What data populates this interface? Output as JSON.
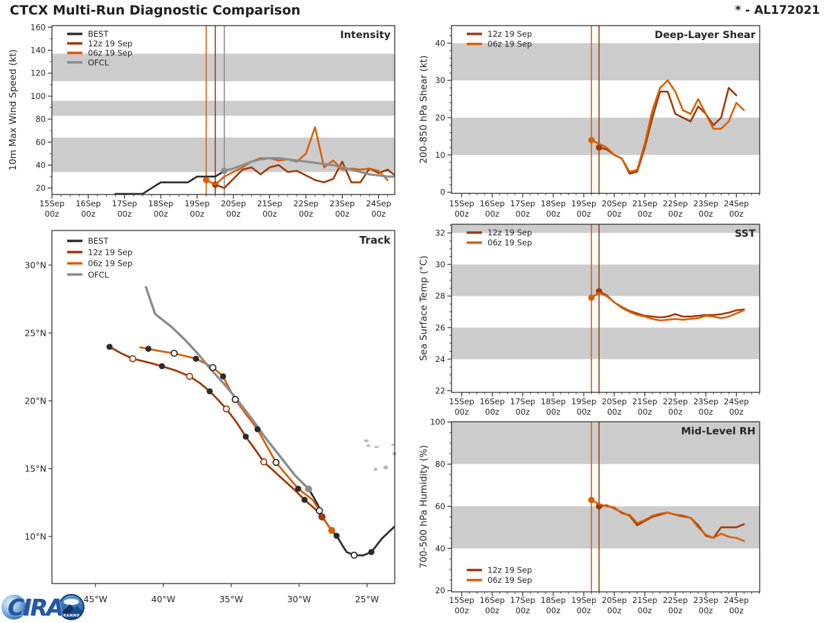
{
  "header": {
    "title": "CTCX Multi-Run Diagnostic Comparison",
    "storm_id": "* - AL172021"
  },
  "colors": {
    "best": "#2b2b2b",
    "run12": "#a03a08",
    "run06": "#d95f02",
    "ofcl": "#8c8c8c",
    "band": "#cccccc",
    "land": "#b9b9b9",
    "text": "#262626",
    "spine": "#333333"
  },
  "legend_labels": {
    "best": "BEST",
    "run12": "12z 19 Sep",
    "run06": "06z 19 Sep",
    "ofcl": "OFCL"
  },
  "logo": {
    "cira_text": "CIRA",
    "badge_text": "RAMMB"
  },
  "chart_data": {
    "type": "line",
    "time_axis": {
      "day_labels": [
        [
          "15Sep",
          "00z"
        ],
        [
          "16Sep",
          "00z"
        ],
        [
          "17Sep",
          "00z"
        ],
        [
          "18Sep",
          "00z"
        ],
        [
          "19Sep",
          "00z"
        ],
        [
          "20Sep",
          "00z"
        ],
        [
          "21Sep",
          "00z"
        ],
        [
          "22Sep",
          "00z"
        ],
        [
          "23Sep",
          "00z"
        ],
        [
          "24Sep",
          "00z"
        ]
      ]
    },
    "panels": {
      "intensity": {
        "title": "Intensity",
        "ylabel": "10m Max Wind Speed (kt)",
        "ylim": [
          14.4,
          161.4
        ],
        "yticks": [
          20,
          40,
          60,
          80,
          100,
          120,
          140,
          160
        ],
        "yminor_step": 10,
        "bands": [
          [
            34,
            64
          ],
          [
            83,
            96
          ],
          [
            113,
            137
          ]
        ],
        "vlines": [
          {
            "hour": 102,
            "color": "run06"
          },
          {
            "hour": 108,
            "color": "run12"
          },
          {
            "hour": 114,
            "color": "ofcl"
          }
        ],
        "legend": {
          "keys": [
            "best",
            "run12",
            "run06",
            "ofcl"
          ],
          "pos": "top-left"
        },
        "series": [
          {
            "key": "best",
            "start_hour": 42,
            "step_hours": 6,
            "start_marker": false,
            "values": [
              15,
              15,
              15,
              15,
              20,
              25,
              25,
              25,
              25,
              30,
              30,
              30,
              35
            ]
          },
          {
            "key": "run12",
            "start_hour": 108,
            "step_hours": 6,
            "start_marker": true,
            "values": [
              23,
              20,
              28,
              36,
              38,
              32,
              38,
              40,
              34,
              35,
              31,
              27,
              25,
              28,
              43,
              25,
              25,
              37,
              33,
              36,
              30
            ]
          },
          {
            "key": "run06",
            "start_hour": 102,
            "step_hours": 6,
            "start_marker": true,
            "values": [
              27,
              23,
              30,
              34,
              38,
              43,
              46,
              46,
              44,
              45,
              43,
              50,
              73,
              38,
              44,
              36,
              37,
              36,
              37,
              35,
              27
            ]
          },
          {
            "key": "ofcl",
            "start_hour": 114,
            "step_hours": 6,
            "start_marker": true,
            "values": [
              35,
              37,
              40,
              43,
              45,
              46,
              46,
              45,
              44,
              43,
              42,
              41,
              40,
              38,
              36,
              34,
              32,
              31,
              30,
              30
            ]
          }
        ]
      },
      "shear": {
        "title": "Deep-Layer Shear",
        "ylabel": "200-850 hPa Shear (kt)",
        "ylim": [
          -0.3,
          44.7
        ],
        "yticks": [
          0,
          10,
          20,
          30,
          40
        ],
        "yminor_step": 2,
        "bands": [
          [
            10,
            20
          ],
          [
            30,
            40
          ]
        ],
        "vlines": [
          {
            "hour": 102,
            "color": "run06"
          },
          {
            "hour": 108,
            "color": "run12"
          }
        ],
        "legend": {
          "keys": [
            "run12",
            "run06"
          ],
          "pos": "top-left"
        },
        "series": [
          {
            "key": "run12",
            "start_hour": 108,
            "step_hours": 6,
            "start_marker": true,
            "values": [
              12,
              11.5,
              10,
              9,
              5,
              5.5,
              12,
              20,
              27,
              27,
              21,
              20,
              19,
              23,
              21,
              18,
              20,
              28,
              26
            ]
          },
          {
            "key": "run06",
            "start_hour": 102,
            "step_hours": 6,
            "start_marker": true,
            "values": [
              14,
              13,
              12,
              10,
              9,
              5.5,
              6,
              13,
              22,
              28,
              30,
              27,
              22,
              21,
              25,
              21,
              17,
              17,
              19,
              24,
              22
            ]
          }
        ]
      },
      "sst": {
        "title": "SST",
        "ylabel": "Sea Surface Temp (°C)",
        "ylim": [
          21.9,
          32.55
        ],
        "yticks": [
          22,
          24,
          26,
          28,
          30,
          32
        ],
        "yminor_step": 0.5,
        "bands": [
          [
            24,
            26
          ],
          [
            28,
            30
          ],
          [
            32,
            33
          ]
        ],
        "vlines": [
          {
            "hour": 102,
            "color": "run06"
          },
          {
            "hour": 108,
            "color": "run12"
          }
        ],
        "legend": {
          "keys": [
            "run12",
            "run06"
          ],
          "pos": "top-left"
        },
        "series": [
          {
            "key": "run12",
            "start_hour": 108,
            "step_hours": 6,
            "start_marker": true,
            "values": [
              28.3,
              28.05,
              27.6,
              27.3,
              27.05,
              26.9,
              26.75,
              26.7,
              26.65,
              26.7,
              26.85,
              26.7,
              26.7,
              26.75,
              26.8,
              26.8,
              26.85,
              26.95,
              27.1,
              27.15
            ]
          },
          {
            "key": "run06",
            "start_hour": 102,
            "step_hours": 6,
            "start_marker": true,
            "values": [
              27.9,
              28.2,
              28.0,
              27.6,
              27.25,
              27.0,
              26.8,
              26.7,
              26.55,
              26.45,
              26.5,
              26.55,
              26.5,
              26.55,
              26.6,
              26.75,
              26.7,
              26.6,
              26.7,
              26.9,
              27.1
            ]
          }
        ]
      },
      "rh": {
        "title": "Mid-Level RH",
        "ylabel": "700-500 hPa Humidity (%)",
        "ylim": [
          19.4,
          100.1
        ],
        "yticks": [
          20,
          40,
          60,
          80,
          100
        ],
        "yminor_step": 5,
        "bands": [
          [
            40,
            60
          ],
          [
            80,
            100
          ]
        ],
        "vlines": [
          {
            "hour": 102,
            "color": "run06"
          },
          {
            "hour": 108,
            "color": "run12"
          }
        ],
        "legend": {
          "keys": [
            "run12",
            "run06"
          ],
          "pos": "bottom-left"
        },
        "series": [
          {
            "key": "run12",
            "start_hour": 108,
            "step_hours": 6,
            "start_marker": true,
            "values": [
              60,
              60.5,
              59,
              57,
              55.5,
              51,
              53,
              55,
              56,
              57,
              56,
              55.5,
              54.5,
              51,
              46,
              45,
              50,
              50,
              50,
              51.5
            ]
          },
          {
            "key": "run06",
            "start_hour": 102,
            "step_hours": 6,
            "start_marker": true,
            "values": [
              63,
              61,
              60,
              59.5,
              56.5,
              56,
              52,
              53.5,
              55.5,
              56.5,
              57,
              56,
              55,
              54.5,
              50,
              46.5,
              45,
              47,
              45.5,
              45,
              43.5
            ]
          }
        ]
      }
    },
    "track": {
      "title": "Track",
      "lon_lim": [
        -48.2,
        -22.96
      ],
      "lat_lim": [
        6.53,
        32.55
      ],
      "lon_ticks": [
        {
          "lon": -45,
          "label": "45°W"
        },
        {
          "lon": -40,
          "label": "40°W"
        },
        {
          "lon": -35,
          "label": "35°W"
        },
        {
          "lon": -30,
          "label": "30°W"
        },
        {
          "lon": -25,
          "label": "25°W"
        }
      ],
      "lat_ticks": [
        {
          "lat": 30,
          "label": "30°N"
        },
        {
          "lat": 25,
          "label": "25°N"
        },
        {
          "lat": 20,
          "label": "20°N"
        },
        {
          "lat": 15,
          "label": "15°N"
        },
        {
          "lat": 10,
          "label": "10°N"
        }
      ],
      "legend": {
        "keys": [
          "best",
          "run12",
          "run06",
          "ofcl"
        ],
        "pos": "top-left"
      },
      "tracks": [
        {
          "key": "best",
          "points": [
            [
              -22.95,
              10.75,
              ""
            ],
            [
              -23.9,
              9.85,
              ""
            ],
            [
              -24.68,
              8.85,
              "f"
            ],
            [
              -25.3,
              8.6,
              ""
            ],
            [
              -25.95,
              8.62,
              "o"
            ],
            [
              -26.5,
              8.85,
              ""
            ],
            [
              -26.85,
              9.4,
              ""
            ],
            [
              -27.24,
              10.05,
              "f"
            ],
            [
              -27.6,
              10.45,
              ""
            ],
            [
              -27.95,
              10.95,
              ""
            ],
            [
              -28.32,
              11.45,
              "o"
            ],
            [
              -28.45,
              12.0,
              ""
            ],
            [
              -28.9,
              12.85,
              ""
            ],
            [
              -29.3,
              13.5,
              ""
            ]
          ]
        },
        {
          "key": "run12",
          "points": [
            [
              -28.32,
              11.45,
              "s"
            ],
            [
              -28.8,
              12.0,
              ""
            ],
            [
              -29.6,
              12.7,
              "f"
            ],
            [
              -30.3,
              13.4,
              ""
            ],
            [
              -31.4,
              14.4,
              ""
            ],
            [
              -32.6,
              15.5,
              "o"
            ],
            [
              -33.3,
              16.5,
              ""
            ],
            [
              -33.93,
              17.36,
              "f"
            ],
            [
              -34.6,
              18.4,
              ""
            ],
            [
              -35.36,
              19.4,
              "o"
            ],
            [
              -36.0,
              20.1,
              ""
            ],
            [
              -36.58,
              20.7,
              "f"
            ],
            [
              -37.3,
              21.3,
              ""
            ],
            [
              -38.07,
              21.8,
              "o"
            ],
            [
              -39.0,
              22.2,
              ""
            ],
            [
              -40.1,
              22.55,
              "f"
            ],
            [
              -41.2,
              22.85,
              ""
            ],
            [
              -42.25,
              23.1,
              "o"
            ],
            [
              -43.1,
              23.5,
              ""
            ],
            [
              -43.96,
              23.98,
              "f"
            ]
          ]
        },
        {
          "key": "run06",
          "points": [
            [
              -27.6,
              10.45,
              "s"
            ],
            [
              -28.0,
              11.0,
              ""
            ],
            [
              -28.5,
              11.9,
              "o"
            ],
            [
              -29.0,
              12.7,
              ""
            ],
            [
              -30.07,
              13.52,
              "f"
            ],
            [
              -30.9,
              14.5,
              ""
            ],
            [
              -31.7,
              15.46,
              "o"
            ],
            [
              -32.4,
              16.7,
              ""
            ],
            [
              -33.06,
              17.9,
              "f"
            ],
            [
              -33.9,
              19.0,
              ""
            ],
            [
              -34.7,
              20.1,
              "o"
            ],
            [
              -35.2,
              21.0,
              ""
            ],
            [
              -35.6,
              21.8,
              "f"
            ],
            [
              -36.0,
              22.15,
              ""
            ],
            [
              -36.35,
              22.45,
              "o"
            ],
            [
              -37.0,
              22.8,
              ""
            ],
            [
              -37.6,
              23.1,
              "f"
            ],
            [
              -38.4,
              23.3,
              ""
            ],
            [
              -39.2,
              23.5,
              "o"
            ],
            [
              -40.2,
              23.65,
              ""
            ],
            [
              -41.1,
              23.83,
              "f"
            ],
            [
              -41.75,
              23.95,
              ""
            ]
          ]
        },
        {
          "key": "ofcl",
          "points": [
            [
              -29.3,
              13.5,
              "s"
            ],
            [
              -30.3,
              14.5,
              ""
            ],
            [
              -31.4,
              15.9,
              ""
            ],
            [
              -32.5,
              17.3,
              ""
            ],
            [
              -33.5,
              18.7,
              ""
            ],
            [
              -34.5,
              20.0,
              ""
            ],
            [
              -35.4,
              21.1,
              ""
            ],
            [
              -36.4,
              22.2,
              ""
            ],
            [
              -37.4,
              23.4,
              ""
            ],
            [
              -38.4,
              24.5,
              ""
            ],
            [
              -39.4,
              25.45,
              ""
            ],
            [
              -40.6,
              26.4,
              ""
            ],
            [
              -40.95,
              27.4,
              ""
            ],
            [
              -41.3,
              28.45,
              ""
            ]
          ]
        }
      ],
      "islands": [
        [
          -25.05,
          17.05,
          7,
          4
        ],
        [
          -24.9,
          16.7,
          5,
          4
        ],
        [
          -24.3,
          16.6,
          7,
          3
        ],
        [
          -23.1,
          16.75,
          5,
          3
        ],
        [
          -22.98,
          16.1,
          6,
          5
        ],
        [
          -23.62,
          15.08,
          7,
          6
        ],
        [
          -24.38,
          14.95,
          5,
          5
        ]
      ]
    }
  }
}
